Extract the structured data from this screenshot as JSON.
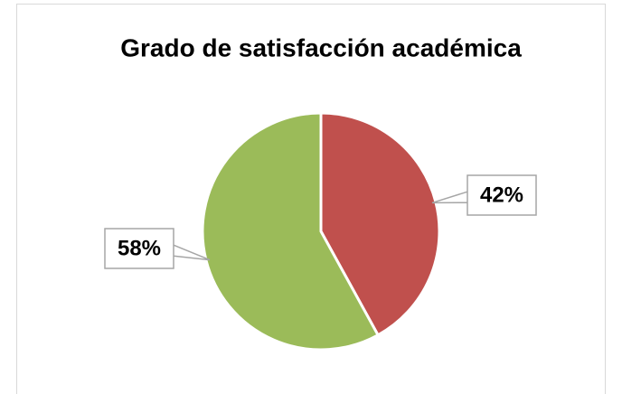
{
  "chart_data": {
    "type": "pie",
    "title": "Grado de satisfacción académica",
    "values": [
      42,
      58
    ],
    "value_labels": [
      "42%",
      "58%"
    ],
    "colors": [
      "#c0504d",
      "#9bbb59"
    ],
    "start": "top",
    "direction": "clockwise"
  }
}
